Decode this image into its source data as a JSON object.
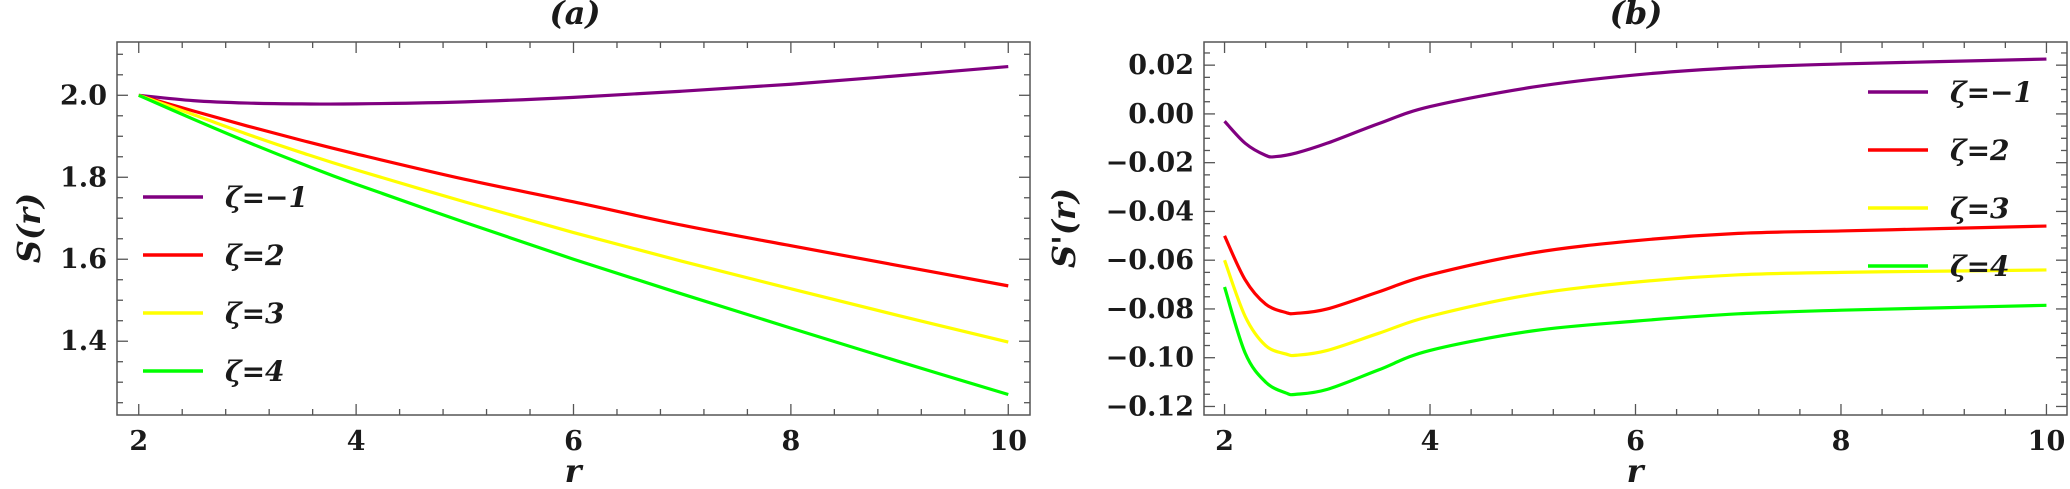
{
  "chart_data": [
    {
      "type": "line",
      "title": "(a)",
      "xlabel": "r",
      "ylabel": "S(r)",
      "xlim": [
        1.8,
        10.2
      ],
      "ylim": [
        1.22,
        2.13
      ],
      "xticks": [
        2,
        4,
        6,
        8,
        10
      ],
      "xtick_labels": [
        "2",
        "4",
        "6",
        "8",
        "10"
      ],
      "yticks": [
        1.4,
        1.6,
        1.8,
        2.0
      ],
      "ytick_labels": [
        "1.4",
        "1.6",
        "1.8",
        "2.0"
      ],
      "legend_position": "center-left",
      "grid": false,
      "series": [
        {
          "name": "ζ=−1",
          "color": "#800080",
          "x": [
            2,
            2.5,
            3,
            3.5,
            4,
            5,
            6,
            7,
            8,
            9,
            10
          ],
          "y": [
            2.0,
            1.987,
            1.981,
            1.979,
            1.979,
            1.984,
            1.995,
            2.01,
            2.027,
            2.048,
            2.07
          ]
        },
        {
          "name": "ζ=2",
          "color": "#ff0000",
          "x": [
            2,
            2.5,
            3,
            3.5,
            4,
            5,
            6,
            7,
            8,
            9,
            10
          ],
          "y": [
            2.0,
            1.962,
            1.925,
            1.89,
            1.857,
            1.795,
            1.74,
            1.683,
            1.633,
            1.584,
            1.535
          ]
        },
        {
          "name": "ζ=3",
          "color": "#ffff00",
          "x": [
            2,
            2.5,
            3,
            3.5,
            4,
            5,
            6,
            7,
            8,
            9,
            10
          ],
          "y": [
            2.0,
            1.953,
            1.905,
            1.86,
            1.818,
            1.74,
            1.665,
            1.595,
            1.528,
            1.462,
            1.398
          ]
        },
        {
          "name": "ζ=4",
          "color": "#00ff00",
          "x": [
            2,
            2.5,
            3,
            3.5,
            4,
            5,
            6,
            7,
            8,
            9,
            10
          ],
          "y": [
            2.0,
            1.942,
            1.886,
            1.833,
            1.783,
            1.69,
            1.6,
            1.515,
            1.432,
            1.35,
            1.27
          ]
        }
      ]
    },
    {
      "type": "line",
      "title": "(b)",
      "xlabel": "r",
      "ylabel": "S'(r)",
      "xlim": [
        1.8,
        10.2
      ],
      "ylim": [
        -0.1235,
        0.0295
      ],
      "xticks": [
        2,
        4,
        6,
        8,
        10
      ],
      "xtick_labels": [
        "2",
        "4",
        "6",
        "8",
        "10"
      ],
      "yticks": [
        -0.12,
        -0.1,
        -0.08,
        -0.06,
        -0.04,
        -0.02,
        0.0,
        0.02
      ],
      "ytick_labels": [
        "−0.12",
        "−0.10",
        "−0.08",
        "−0.06",
        "−0.04",
        "−0.02",
        "0.00",
        "0.02"
      ],
      "legend_position": "top-right",
      "grid": false,
      "series": [
        {
          "name": "ζ=−1",
          "color": "#800080",
          "x": [
            2,
            2.2,
            2.4,
            2.5,
            2.7,
            3,
            3.5,
            4,
            5,
            6,
            7,
            8,
            9,
            10
          ],
          "y": [
            -0.003,
            -0.012,
            -0.017,
            -0.0175,
            -0.016,
            -0.012,
            -0.004,
            0.003,
            0.011,
            0.016,
            0.019,
            0.0205,
            0.0215,
            0.0225
          ]
        },
        {
          "name": "ζ=2",
          "color": "#ff0000",
          "x": [
            2,
            2.2,
            2.4,
            2.6,
            2.7,
            3,
            3.5,
            4,
            5,
            6,
            7,
            8,
            9,
            10
          ],
          "y": [
            -0.05,
            -0.068,
            -0.078,
            -0.0815,
            -0.0818,
            -0.08,
            -0.073,
            -0.066,
            -0.057,
            -0.052,
            -0.049,
            -0.048,
            -0.047,
            -0.046
          ]
        },
        {
          "name": "ζ=3",
          "color": "#ffff00",
          "x": [
            2,
            2.2,
            2.4,
            2.6,
            2.7,
            3,
            3.5,
            4,
            5,
            6,
            7,
            8,
            9,
            10
          ],
          "y": [
            -0.06,
            -0.083,
            -0.095,
            -0.0985,
            -0.099,
            -0.097,
            -0.09,
            -0.083,
            -0.074,
            -0.069,
            -0.066,
            -0.065,
            -0.0645,
            -0.064
          ]
        },
        {
          "name": "ζ=4",
          "color": "#00ff00",
          "x": [
            2,
            2.2,
            2.4,
            2.6,
            2.7,
            3,
            3.5,
            4,
            5,
            6,
            7,
            8,
            9,
            10
          ],
          "y": [
            -0.071,
            -0.098,
            -0.11,
            -0.1145,
            -0.115,
            -0.113,
            -0.105,
            -0.097,
            -0.089,
            -0.085,
            -0.082,
            -0.0805,
            -0.0795,
            -0.0785
          ]
        }
      ]
    }
  ]
}
